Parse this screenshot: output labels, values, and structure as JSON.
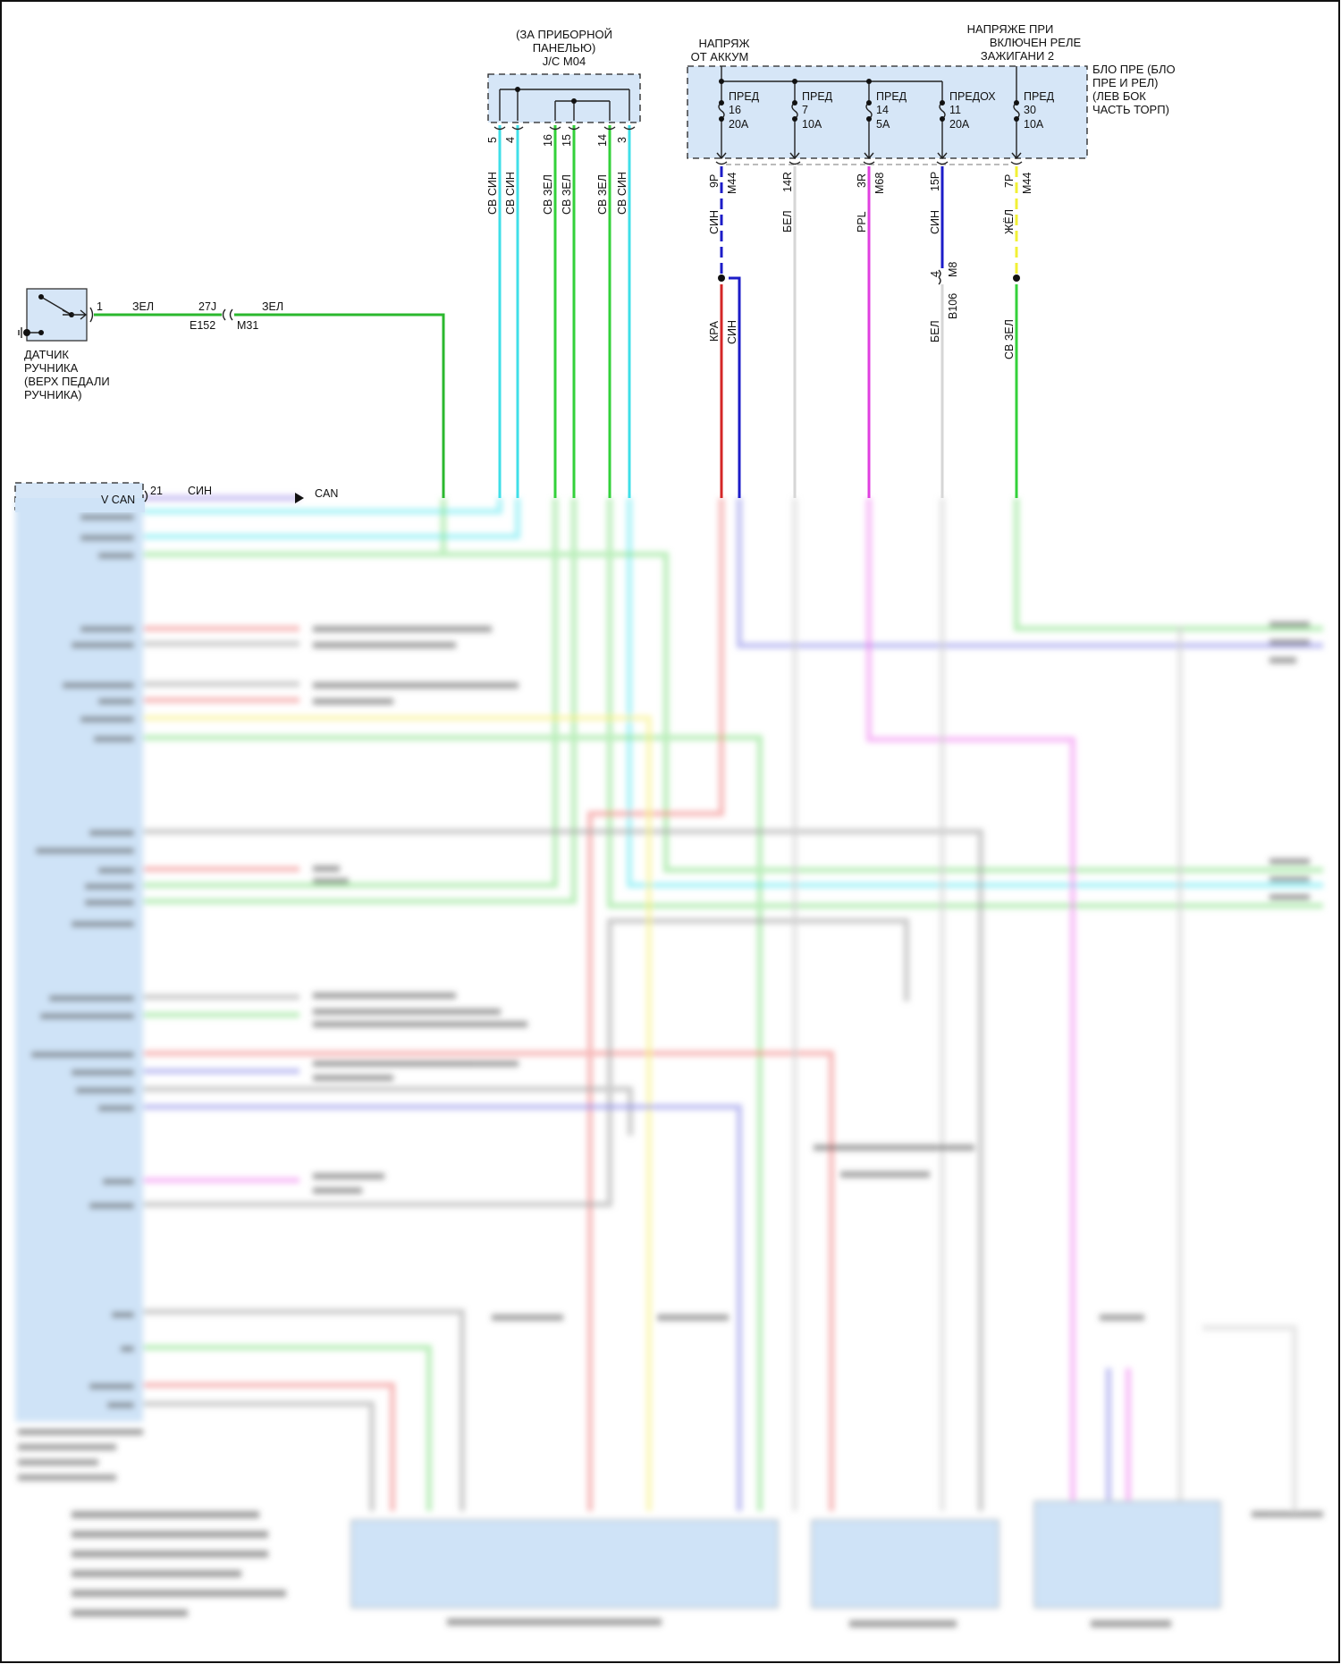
{
  "junction": {
    "title_lines": [
      "(ЗА ПРИБОРНОЙ",
      "ПАНЕЛЬЮ)",
      "J/C M04"
    ],
    "pins": [
      {
        "pin": "5",
        "wire": "СВ СИН",
        "color": "#3fdfe8"
      },
      {
        "pin": "4",
        "wire": "СВ СИН",
        "color": "#3fdfe8"
      },
      {
        "pin": "16",
        "wire": "СВ ЗЕЛ",
        "color": "#33d13a"
      },
      {
        "pin": "15",
        "wire": "СВ ЗЕЛ",
        "color": "#33d13a"
      },
      {
        "pin": "14",
        "wire": "СВ ЗЕЛ",
        "color": "#33d13a"
      },
      {
        "pin": "3",
        "wire": "СВ СИН",
        "color": "#3fdfe8"
      }
    ]
  },
  "fuse_box": {
    "label_lines": [
      "БЛО ПРЕ (БЛО",
      "ПРЕ И РЕЛ)",
      "(ЛЕВ БОК",
      "ЧАСТЬ ТОРП)"
    ],
    "supply_battery": [
      "НАПРЯЖ",
      "ОТ АККУМ"
    ],
    "supply_ignition": [
      "НАПРЯЖЕ ПРИ",
      "ВКЛЮЧЕН РЕЛЕ",
      "ЗАЖИГАНИ 2"
    ],
    "fuses": [
      {
        "name": "ПРЕД",
        "number": "16",
        "rating": "20A",
        "pin": "9P",
        "connector": "M44",
        "wire": "СИН"
      },
      {
        "name": "ПРЕД",
        "number": "7",
        "rating": "10A",
        "pin": "14R",
        "connector": "",
        "wire": "БЕЛ"
      },
      {
        "name": "ПРЕД",
        "number": "14",
        "rating": "5A",
        "pin": "3R",
        "connector": "M68",
        "wire": "PPL"
      },
      {
        "name": "ПРЕДОХ",
        "number": "11",
        "rating": "20A",
        "pin": "15P",
        "connector": "",
        "wire": "СИН"
      },
      {
        "name": "ПРЕД",
        "number": "30",
        "rating": "10A",
        "pin": "7P",
        "connector": "M44",
        "wire": "ЖЁЛ"
      }
    ],
    "lower_labels": {
      "red_wire": "КРА",
      "blue_wire": "СИН",
      "b106_pin": "4",
      "m8_connector": "M8",
      "b106_connector": "B106",
      "white_wire": "БЕЛ",
      "green_wire": "СВ ЗЕЛ"
    }
  },
  "sensor": {
    "label_lines": [
      "ДАТЧИК",
      "РУЧНИКА",
      "(ВЕРХ ПЕДАЛИ",
      "РУЧНИКА)"
    ],
    "pin": "1",
    "wire_1": "ЗЕЛ",
    "inline_pin": "27J",
    "connector_a": "E152",
    "connector_b": "M31",
    "wire_2": "ЗЕЛ"
  },
  "module": {
    "port_label": "V CAN",
    "pin": "21",
    "wire": "СИН",
    "target": "CAN"
  },
  "colors": {
    "box_fill": "#d6e6f7",
    "cyan": "#3fdfe8",
    "green": "#33d13a",
    "blue": "#1c1cc8",
    "red": "#d42626",
    "magenta": "#e040e0",
    "yellow": "#f2f034",
    "white_wire": "#d6d6d6"
  }
}
